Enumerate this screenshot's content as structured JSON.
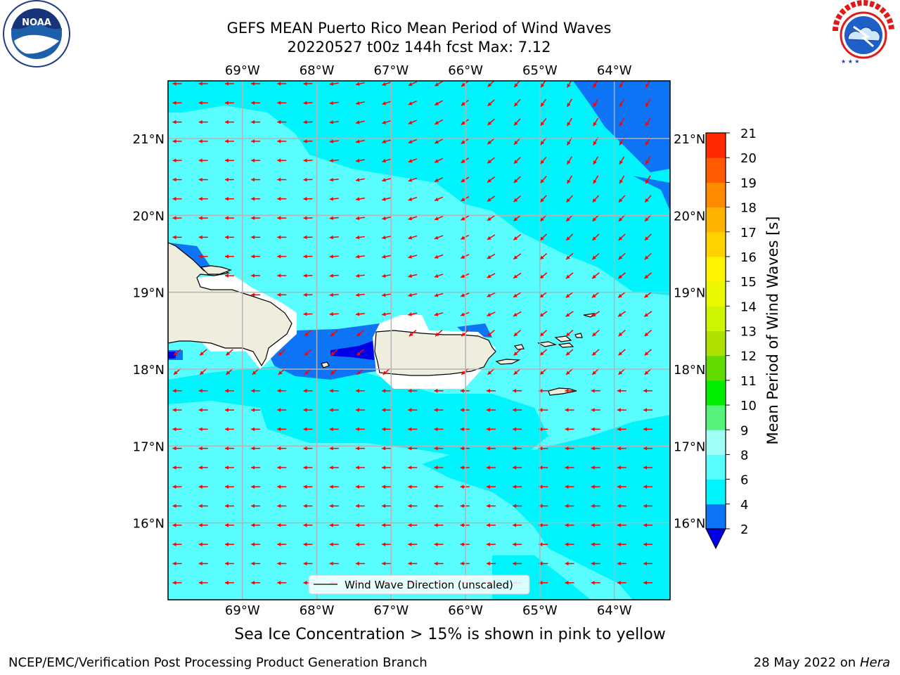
{
  "title": {
    "line1": "GEFS MEAN Puerto Rico Mean Period of Wind Waves",
    "line2": "20220527 t00z 144h fcst   Max: 7.12"
  },
  "logos": {
    "left": {
      "name": "NOAA",
      "ring_text": "NATIONAL OCEANIC AND ATMOSPHERIC ADMINISTRATION · U.S. DEPARTMENT OF COMMERCE"
    },
    "right": {
      "name": "NATIONAL WEATHER SERVICE"
    }
  },
  "map": {
    "lon_range": [
      -70.0,
      -63.25
    ],
    "lat_range": [
      15.0,
      21.75
    ],
    "lon_ticks": [
      "69°W",
      "68°W",
      "67°W",
      "66°W",
      "65°W",
      "64°W"
    ],
    "lon_values": [
      -69,
      -68,
      -67,
      -66,
      -65,
      -64
    ],
    "lat_ticks": [
      "21°N",
      "20°N",
      "19°N",
      "18°N",
      "17°N",
      "16°N"
    ],
    "lat_values": [
      21,
      20,
      19,
      18,
      17,
      16
    ],
    "grid": true,
    "ocean_colors": {
      "light": "#5afdfd",
      "mid": "#00f4fc",
      "dark": "#0d74f5",
      "deepest": "#0000e6"
    },
    "land_color": "#efedde",
    "arrow_color": "#ff0000",
    "legend": {
      "label": "Wind Wave Direction (unscaled)",
      "placement": "lower center"
    }
  },
  "colorbar": {
    "label": "Mean Period of Wind Waves [s]",
    "ticks": [
      "2",
      "4",
      "6",
      "8",
      "9",
      "10",
      "11",
      "12",
      "13",
      "14",
      "15",
      "16",
      "17",
      "18",
      "19",
      "20",
      "21"
    ],
    "colors": [
      "#0d74f5",
      "#00f4fc",
      "#5afdfd",
      "#9ffff7",
      "#55f37b",
      "#00ec00",
      "#62dc00",
      "#aee000",
      "#cdf400",
      "#eaf800",
      "#fff500",
      "#ffd200",
      "#ffb200",
      "#ff8a00",
      "#ff5a00",
      "#ff2a00"
    ],
    "under_color": "#0000e6"
  },
  "ice_note": "Sea Ice Concentration > 15% is shown in pink to yellow",
  "footer": {
    "left": "NCEP/EMC/Verification Post Processing Product Generation Branch",
    "right_date": "28 May 2022 on",
    "right_host": "Hera"
  }
}
